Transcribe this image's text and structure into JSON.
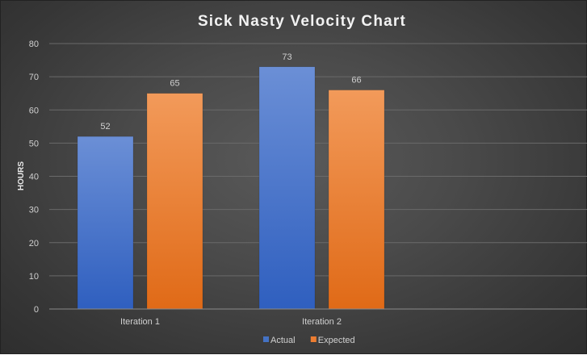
{
  "chart_data": {
    "type": "bar",
    "title": "Sick Nasty Velocity Chart",
    "xlabel": "",
    "ylabel": "HOURS",
    "categories": [
      "Iteration 1",
      "Iteration 2"
    ],
    "series": [
      {
        "name": "Actual",
        "values": [
          52,
          73
        ],
        "color": "#4472c4"
      },
      {
        "name": "Expected",
        "values": [
          65,
          66
        ],
        "color": "#ed7d31"
      }
    ],
    "ylim": [
      0,
      80
    ],
    "yticks": [
      0,
      10,
      20,
      30,
      40,
      50,
      60,
      70,
      80
    ],
    "grid": true,
    "legend_position": "bottom"
  }
}
